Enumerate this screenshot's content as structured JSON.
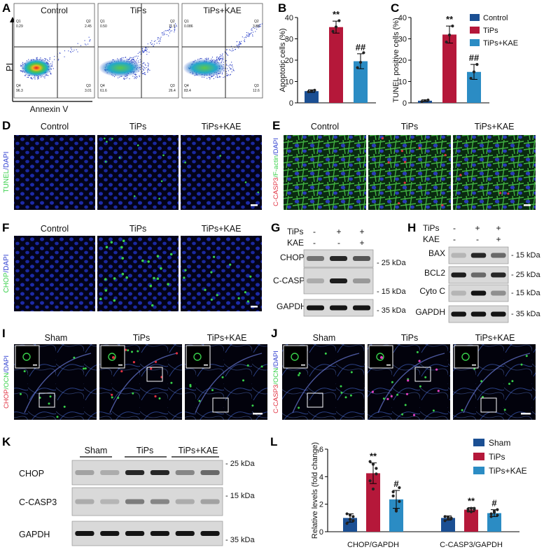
{
  "panels": {
    "A": {
      "letter": "A",
      "y_axis_label": "PI",
      "x_axis_label": "Annexin V",
      "plots": [
        {
          "title": "Control",
          "q1": "0.29",
          "q2": "2.45",
          "q3": "3.01",
          "q4": "96.3"
        },
        {
          "title": "TiPs",
          "q1": "0.50",
          "q2": "11.5",
          "q3": "26.4",
          "q4": "61.6"
        },
        {
          "title": "TiPs+KAE",
          "q1": "0.086",
          "q2": "3.88",
          "q3": "12.6",
          "q4": "83.4"
        }
      ]
    },
    "B": {
      "letter": "B",
      "ylabel": "Apoptotic cells (%)",
      "ticks": [
        "0",
        "10",
        "20",
        "30",
        "40"
      ],
      "sig": [
        "",
        "**",
        "##"
      ]
    },
    "C": {
      "letter": "C",
      "ylabel": "TUNEL positive cells (%)",
      "ticks": [
        "0",
        "10",
        "20",
        "30",
        "40"
      ],
      "sig": [
        "",
        "**",
        "##"
      ]
    },
    "legend_top": [
      "Control",
      "TiPs",
      "TiPs+KAE"
    ],
    "D": {
      "letter": "D",
      "columns": [
        "Control",
        "TiPs",
        "TiPs+KAE"
      ],
      "side_label_parts": [
        "TUNEL",
        "/DAPI"
      ]
    },
    "E": {
      "letter": "E",
      "columns": [
        "Control",
        "TiPs",
        "TiPs+KAE"
      ],
      "side_label_parts": [
        "C-CASP3",
        "/F-actin",
        "/DAPI"
      ]
    },
    "F": {
      "letter": "F",
      "columns": [
        "Control",
        "TiPs",
        "TiPs+KAE"
      ],
      "side_label_parts": [
        "CHOP",
        "/DAPI"
      ]
    },
    "G": {
      "letter": "G",
      "row_labels": [
        "TiPs",
        "KAE"
      ],
      "signs": [
        [
          "-",
          "+",
          "+"
        ],
        [
          "-",
          "-",
          "+"
        ]
      ],
      "bands": [
        "CHOP",
        "C-CASP3",
        "GAPDH"
      ],
      "markers": [
        "25 kDa",
        "15 kDa",
        "35 kDa"
      ]
    },
    "H": {
      "letter": "H",
      "row_labels": [
        "TiPs",
        "KAE"
      ],
      "signs": [
        [
          "-",
          "+",
          "+"
        ],
        [
          "-",
          "-",
          "+"
        ]
      ],
      "bands": [
        "BAX",
        "BCL2",
        "Cyto C",
        "GAPDH"
      ],
      "markers": [
        "15 kDa",
        "25 kDa",
        "15 kDa",
        "35 kDa"
      ]
    },
    "I": {
      "letter": "I",
      "columns": [
        "Sham",
        "TiPs",
        "TiPs+KAE"
      ],
      "side_label_parts": [
        "CHOP",
        "/OCN",
        "/DAPI"
      ]
    },
    "J": {
      "letter": "J",
      "columns": [
        "Sham",
        "TiPs",
        "TiPs+KAE"
      ],
      "side_label_parts": [
        "C-CASP3",
        "/OCN",
        "/DAPI"
      ]
    },
    "K": {
      "letter": "K",
      "groups": [
        "Sham",
        "TiPs",
        "TiPs+KAE"
      ],
      "bands": [
        "CHOP",
        "C-CASP3",
        "GAPDH"
      ],
      "markers": [
        "25 kDa",
        "15 kDa",
        "35 kDa"
      ]
    },
    "L": {
      "letter": "L",
      "ylabel": "Relative levels (fold change)",
      "ticks": [
        "0",
        "2",
        "4",
        "6"
      ],
      "sig": [
        [
          "",
          "**",
          "#"
        ],
        [
          "",
          "**",
          "#"
        ]
      ],
      "legend": [
        "Sham",
        "TiPs",
        "TiPs+KAE"
      ]
    }
  },
  "colors": {
    "control": "#1b4f93",
    "tips": "#b5183a",
    "kae": "#2b8cc4",
    "nucleus": "#1a2a9a",
    "green": "#38d04a",
    "red": "#e03040"
  },
  "chart_data": [
    {
      "panel": "B",
      "type": "bar",
      "categories": [
        "Control",
        "TiPs",
        "TiPs+KAE"
      ],
      "values": [
        5.5,
        35.5,
        19.5
      ],
      "errors": [
        0.6,
        2.8,
        3.5
      ],
      "points": [
        [
          5.2,
          5.6,
          5.9
        ],
        [
          33.5,
          35.6,
          38.5
        ],
        [
          16.5,
          19.0,
          23.5
        ]
      ],
      "ylabel": "Apoptotic cells (%)",
      "ylim": [
        0,
        40
      ]
    },
    {
      "panel": "C",
      "type": "bar",
      "categories": [
        "Control",
        "TiPs",
        "TiPs+KAE"
      ],
      "values": [
        1.0,
        32.0,
        14.5
      ],
      "errors": [
        0.4,
        4.0,
        3.5
      ],
      "points": [
        [
          0.6,
          1.0,
          1.3
        ],
        [
          28.5,
          31.8,
          36.0
        ],
        [
          11.5,
          14.5,
          18.0
        ]
      ],
      "ylabel": "TUNEL positive cells (%)",
      "ylim": [
        0,
        40
      ]
    },
    {
      "panel": "L",
      "type": "bar",
      "categories": [
        "CHOP/GAPDH",
        "C-CASP3/GAPDH"
      ],
      "series": [
        {
          "name": "Sham",
          "values": [
            1.0,
            1.0
          ],
          "errors": [
            0.3,
            0.15
          ],
          "points": [
            [
              0.6,
              0.9,
              1.1,
              1.3,
              1.2,
              0.8
            ],
            [
              0.8,
              0.9,
              1.0,
              1.1,
              1.05,
              0.95
            ]
          ]
        },
        {
          "name": "TiPs",
          "values": [
            4.25,
            1.6
          ],
          "errors": [
            0.75,
            0.15
          ],
          "points": [
            [
              5.1,
              4.9,
              4.2,
              3.7,
              3.1,
              4.6
            ],
            [
              1.5,
              1.7,
              1.6,
              1.65,
              1.45,
              1.7
            ]
          ]
        },
        {
          "name": "TiPs+KAE",
          "values": [
            2.35,
            1.35
          ],
          "errors": [
            0.65,
            0.25
          ],
          "points": [
            [
              2.9,
              1.6,
              2.2,
              2.6,
              1.5,
              3.2
            ],
            [
              1.1,
              1.5,
              1.6,
              1.3,
              1.4,
              1.2
            ]
          ]
        }
      ],
      "ylabel": "Relative levels (fold change)",
      "ylim": [
        0,
        6
      ]
    }
  ]
}
